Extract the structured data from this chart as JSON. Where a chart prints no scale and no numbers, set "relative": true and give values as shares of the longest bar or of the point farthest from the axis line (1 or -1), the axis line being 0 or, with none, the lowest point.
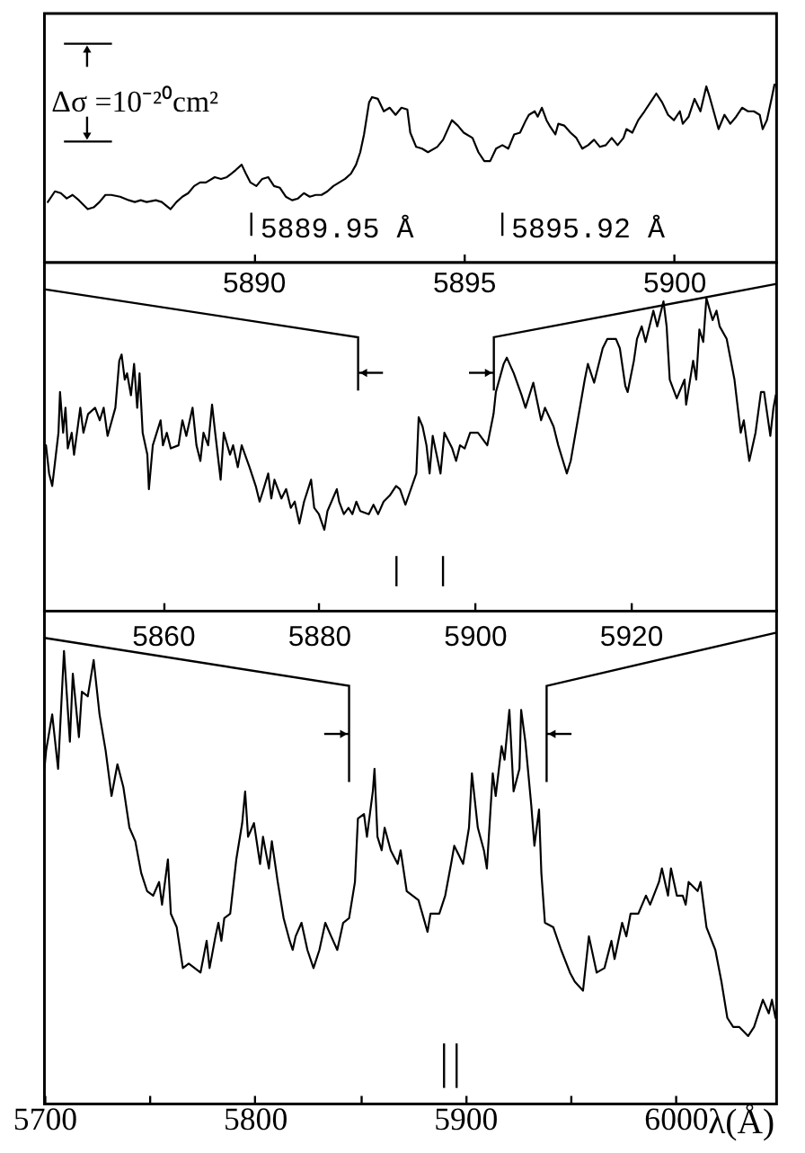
{
  "chart_data": [
    {
      "type": "line",
      "relative": true,
      "xlim": [
        5885.03,
        5902.44
      ],
      "xticks": [
        5890,
        5895,
        5900
      ],
      "annotations": [
        "Δσ =10⁻²⁰cm²"
      ],
      "ref_lines": [
        {
          "axis": "x",
          "value": 5889.95,
          "label": "5889.95 Å"
        },
        {
          "axis": "x",
          "value": 5895.92,
          "label": "5895.92 Å"
        }
      ],
      "series": [
        {
          "color": "#000000",
          "x": [
            5885.11,
            5885.28,
            5885.42,
            5885.56,
            5885.7,
            5885.85,
            5886.06,
            5886.2,
            5886.34,
            5886.48,
            5886.62,
            5886.83,
            5887.04,
            5887.18,
            5887.32,
            5887.46,
            5887.68,
            5887.82,
            5888.03,
            5888.17,
            5888.31,
            5888.45,
            5888.59,
            5888.73,
            5888.87,
            5889.08,
            5889.23,
            5889.37,
            5889.58,
            5889.72,
            5889.82,
            5889.93,
            5890.07,
            5890.21,
            5890.35,
            5890.49,
            5890.63,
            5890.77,
            5890.92,
            5891.06,
            5891.2,
            5891.34,
            5891.48,
            5891.62,
            5891.76,
            5891.9,
            5892.04,
            5892.18,
            5892.32,
            5892.44,
            5892.54,
            5892.63,
            5892.75,
            5892.82,
            5892.96,
            5893.1,
            5893.24,
            5893.38,
            5893.52,
            5893.66,
            5893.73,
            5893.87,
            5894.01,
            5894.15,
            5894.37,
            5894.51,
            5894.72,
            5894.86,
            5895.0,
            5895.21,
            5895.35,
            5895.49,
            5895.63,
            5895.77,
            5895.92,
            5896.06,
            5896.2,
            5896.34,
            5896.48,
            5896.55,
            5896.69,
            5896.76,
            5896.86,
            5896.97,
            5897.04,
            5897.18,
            5897.25,
            5897.39,
            5897.54,
            5897.68,
            5897.82,
            5897.96,
            5898.1,
            5898.24,
            5898.38,
            5898.52,
            5898.66,
            5898.8,
            5898.87,
            5899.01,
            5899.15,
            5899.3,
            5899.44,
            5899.58,
            5899.72,
            5899.86,
            5900.0,
            5900.14,
            5900.21,
            5900.35,
            5900.49,
            5900.63,
            5900.77,
            5900.85,
            5900.92,
            5901.06,
            5901.2,
            5901.34,
            5901.48,
            5901.62,
            5901.76,
            5901.9,
            5902.04,
            5902.11,
            5902.21,
            5902.32,
            5902.39
          ],
          "values": [
            0.34,
            0.4,
            0.39,
            0.36,
            0.38,
            0.35,
            0.3,
            0.31,
            0.34,
            0.38,
            0.38,
            0.37,
            0.35,
            0.34,
            0.35,
            0.34,
            0.35,
            0.34,
            0.3,
            0.34,
            0.37,
            0.39,
            0.43,
            0.45,
            0.45,
            0.48,
            0.47,
            0.48,
            0.52,
            0.55,
            0.5,
            0.45,
            0.43,
            0.47,
            0.48,
            0.43,
            0.42,
            0.37,
            0.35,
            0.36,
            0.39,
            0.37,
            0.38,
            0.38,
            0.4,
            0.43,
            0.45,
            0.47,
            0.5,
            0.55,
            0.62,
            0.72,
            0.9,
            0.93,
            0.92,
            0.85,
            0.87,
            0.83,
            0.87,
            0.86,
            0.73,
            0.65,
            0.64,
            0.62,
            0.65,
            0.69,
            0.8,
            0.77,
            0.73,
            0.7,
            0.62,
            0.57,
            0.57,
            0.64,
            0.66,
            0.64,
            0.72,
            0.73,
            0.8,
            0.83,
            0.85,
            0.82,
            0.87,
            0.8,
            0.77,
            0.72,
            0.78,
            0.77,
            0.73,
            0.7,
            0.64,
            0.66,
            0.69,
            0.65,
            0.66,
            0.7,
            0.66,
            0.7,
            0.75,
            0.73,
            0.8,
            0.85,
            0.9,
            0.95,
            0.9,
            0.83,
            0.8,
            0.85,
            0.78,
            0.82,
            0.92,
            0.85,
            0.99,
            0.93,
            0.87,
            0.75,
            0.83,
            0.78,
            0.82,
            0.87,
            0.85,
            0.85,
            0.83,
            0.75,
            0.8,
            0.92,
            1.0
          ]
        }
      ]
    },
    {
      "type": "line",
      "relative": true,
      "xlim": [
        5844.8,
        5938.7
      ],
      "xticks": [
        5860,
        5880,
        5900,
        5920
      ],
      "ref_lines": [
        {
          "axis": "x",
          "value": 5885.03
        },
        {
          "axis": "x",
          "value": 5889.95
        },
        {
          "axis": "x",
          "value": 5895.92
        },
        {
          "axis": "x",
          "value": 5902.44
        }
      ],
      "series": [
        {
          "color": "#000000",
          "x": [
            5845.0,
            5845.4,
            5845.8,
            5846.6,
            5846.8,
            5847.2,
            5847.5,
            5847.8,
            5848.3,
            5848.6,
            5849.4,
            5849.8,
            5850.4,
            5851.3,
            5851.9,
            5852.4,
            5852.9,
            5853.9,
            5854.4,
            5854.7,
            5855.1,
            5855.4,
            5855.9,
            5856.3,
            5856.7,
            5857.0,
            5857.4,
            5858.0,
            5858.2,
            5858.7,
            5859.7,
            5860.0,
            5860.5,
            5861.0,
            5862.0,
            5862.5,
            5863.0,
            5863.8,
            5864.3,
            5864.8,
            5865.2,
            5865.8,
            5866.3,
            5866.7,
            5867.4,
            5867.8,
            5868.6,
            5869.0,
            5869.6,
            5870.1,
            5871.1,
            5871.9,
            5872.4,
            5872.9,
            5873.5,
            5873.9,
            5874.3,
            5875.2,
            5875.8,
            5876.4,
            5876.9,
            5877.5,
            5878.1,
            5879.0,
            5879.4,
            5880.0,
            5880.7,
            5881.1,
            5882.3,
            5882.6,
            5883.2,
            5883.8,
            5884.3,
            5884.8,
            5885.3,
            5886.4,
            5887.0,
            5887.6,
            5888.3,
            5889.1,
            5889.9,
            5890.4,
            5891.1,
            5892.5,
            5892.8,
            5893.3,
            5893.8,
            5894.2,
            5894.6,
            5895.6,
            5896.1,
            5897.1,
            5897.6,
            5898.1,
            5898.7,
            5899.4,
            5900.4,
            5901.6,
            5902.4,
            5902.7,
            5903.7,
            5904.1,
            5905.0,
            5906.0,
            5906.5,
            5907.5,
            5908.5,
            5909.0,
            5910.1,
            5910.7,
            5911.8,
            5912.3,
            5913.2,
            5914.1,
            5914.5,
            5915.3,
            5916.4,
            5917.0,
            5918.1,
            5918.6,
            5919.3,
            5919.6,
            5920.4,
            5920.8,
            5921.4,
            5921.9,
            5922.9,
            5923.4,
            5924.2,
            5924.6,
            5925.0,
            5925.9,
            5926.9,
            5927.1,
            5928.0,
            5928.4,
            5928.8,
            5929.3,
            5929.7,
            5930.5,
            5931.0,
            5931.4,
            5932.3,
            5933.3,
            5934.1,
            5934.5,
            5935.2,
            5936.0,
            5936.7,
            5937.1,
            5937.9,
            5938.3,
            5938.6
          ],
          "values": [
            0.53,
            0.44,
            0.4,
            0.57,
            0.7,
            0.57,
            0.65,
            0.52,
            0.57,
            0.5,
            0.65,
            0.57,
            0.63,
            0.65,
            0.61,
            0.65,
            0.56,
            0.65,
            0.8,
            0.82,
            0.74,
            0.76,
            0.69,
            0.79,
            0.65,
            0.76,
            0.57,
            0.5,
            0.39,
            0.53,
            0.61,
            0.53,
            0.57,
            0.52,
            0.53,
            0.61,
            0.56,
            0.65,
            0.53,
            0.48,
            0.57,
            0.53,
            0.66,
            0.57,
            0.42,
            0.57,
            0.5,
            0.53,
            0.46,
            0.53,
            0.46,
            0.4,
            0.35,
            0.39,
            0.44,
            0.36,
            0.42,
            0.36,
            0.39,
            0.33,
            0.35,
            0.28,
            0.35,
            0.42,
            0.33,
            0.31,
            0.26,
            0.32,
            0.39,
            0.35,
            0.31,
            0.33,
            0.31,
            0.35,
            0.32,
            0.31,
            0.34,
            0.31,
            0.35,
            0.37,
            0.4,
            0.39,
            0.34,
            0.44,
            0.62,
            0.59,
            0.53,
            0.44,
            0.56,
            0.44,
            0.57,
            0.52,
            0.48,
            0.53,
            0.52,
            0.57,
            0.57,
            0.53,
            0.63,
            0.7,
            0.79,
            0.81,
            0.76,
            0.69,
            0.65,
            0.73,
            0.61,
            0.65,
            0.59,
            0.53,
            0.44,
            0.48,
            0.61,
            0.74,
            0.79,
            0.73,
            0.84,
            0.87,
            0.87,
            0.84,
            0.72,
            0.7,
            0.8,
            0.87,
            0.91,
            0.86,
            0.96,
            0.91,
            0.99,
            0.91,
            0.74,
            0.68,
            0.74,
            0.66,
            0.8,
            0.74,
            0.9,
            0.86,
            1.0,
            0.93,
            0.96,
            0.91,
            0.87,
            0.74,
            0.57,
            0.61,
            0.48,
            0.57,
            0.7,
            0.7,
            0.56,
            0.65,
            0.69
          ]
        }
      ]
    },
    {
      "type": "line",
      "relative": true,
      "xlim": [
        5700,
        6048
      ],
      "xlabel": "λ(Å)",
      "xticks": [
        5700,
        {
          "value": 5750,
          "label": null
        },
        5800,
        {
          "value": 5850,
          "label": null
        },
        5900,
        {
          "value": 5950,
          "label": null
        },
        6000
      ],
      "ref_lines": [
        {
          "axis": "x",
          "value": 5844.8
        },
        {
          "axis": "x",
          "value": 5889.95
        },
        {
          "axis": "x",
          "value": 5895.92
        },
        {
          "axis": "x",
          "value": 5938.7
        }
      ],
      "series": [
        {
          "color": "#000000",
          "x": [
            5700.0,
            5700.8,
            5703.7,
            5706.5,
            5709.3,
            5712.1,
            5713.5,
            5716.4,
            5717.8,
            5720.6,
            5723.4,
            5726.2,
            5729.1,
            5731.9,
            5734.7,
            5737.5,
            5740.4,
            5743.2,
            5746.0,
            5748.8,
            5751.7,
            5754.5,
            5755.9,
            5758.7,
            5760.1,
            5762.9,
            5765.8,
            5768.6,
            5771.4,
            5774.2,
            5777.1,
            5778.5,
            5781.3,
            5782.7,
            5784.1,
            5785.5,
            5788.3,
            5791.2,
            5794.0,
            5795.4,
            5796.8,
            5799.6,
            5802.5,
            5803.9,
            5806.7,
            5808.1,
            5810.9,
            5813.7,
            5816.6,
            5818.0,
            5819.4,
            5822.2,
            5825.0,
            5827.9,
            5830.7,
            5833.5,
            5836.3,
            5839.2,
            5842.0,
            5844.8,
            5847.6,
            5849.0,
            5851.9,
            5853.3,
            5856.1,
            5856.9,
            5858.3,
            5860.3,
            5861.7,
            5864.6,
            5867.9,
            5869.3,
            5872.2,
            5875.0,
            5877.8,
            5882.1,
            5883.5,
            5887.7,
            5890.5,
            5893.3,
            5894.8,
            5899.0,
            5901.8,
            5903.2,
            5906.0,
            5908.9,
            5910.3,
            5913.1,
            5914.5,
            5917.3,
            5918.7,
            5921.0,
            5923.0,
            5925.8,
            5926.6,
            5928.6,
            5931.4,
            5932.9,
            5935.1,
            5936.2,
            5937.9,
            5941.9,
            5945.6,
            5949.8,
            5952.1,
            5956.0,
            5958.8,
            5962.5,
            5966.2,
            5969.5,
            5971.0,
            5974.6,
            5976.6,
            5978.6,
            5982.3,
            5985.9,
            5987.9,
            5992.1,
            5993.5,
            5996.4,
            5997.8,
            6000.6,
            6003.4,
            6004.8,
            6006.2,
            6010.5,
            6011.9,
            6014.7,
            6018.9,
            6021.8,
            6024.6,
            6027.4,
            6030.2,
            6034.5,
            6037.3,
            6041.5,
            6044.3,
            6045.8,
            6047.5
          ],
          "values": [
            0.74,
            0.78,
            0.86,
            0.74,
            1.0,
            0.8,
            0.95,
            0.81,
            0.91,
            0.9,
            0.98,
            0.86,
            0.78,
            0.68,
            0.75,
            0.7,
            0.61,
            0.58,
            0.51,
            0.47,
            0.46,
            0.49,
            0.44,
            0.54,
            0.42,
            0.39,
            0.3,
            0.31,
            0.3,
            0.29,
            0.36,
            0.3,
            0.37,
            0.4,
            0.36,
            0.41,
            0.42,
            0.54,
            0.62,
            0.69,
            0.59,
            0.62,
            0.53,
            0.59,
            0.52,
            0.58,
            0.49,
            0.41,
            0.36,
            0.34,
            0.37,
            0.4,
            0.34,
            0.3,
            0.34,
            0.4,
            0.37,
            0.34,
            0.4,
            0.41,
            0.49,
            0.63,
            0.64,
            0.59,
            0.69,
            0.74,
            0.59,
            0.56,
            0.61,
            0.56,
            0.53,
            0.56,
            0.47,
            0.46,
            0.45,
            0.38,
            0.42,
            0.42,
            0.46,
            0.53,
            0.57,
            0.53,
            0.61,
            0.73,
            0.61,
            0.56,
            0.52,
            0.73,
            0.68,
            0.79,
            0.76,
            0.87,
            0.69,
            0.74,
            0.87,
            0.8,
            0.66,
            0.57,
            0.65,
            0.51,
            0.4,
            0.39,
            0.34,
            0.29,
            0.27,
            0.25,
            0.37,
            0.29,
            0.3,
            0.36,
            0.32,
            0.4,
            0.37,
            0.42,
            0.42,
            0.46,
            0.44,
            0.49,
            0.52,
            0.46,
            0.52,
            0.46,
            0.46,
            0.44,
            0.49,
            0.47,
            0.49,
            0.39,
            0.34,
            0.27,
            0.19,
            0.17,
            0.17,
            0.15,
            0.17,
            0.23,
            0.2,
            0.23,
            0.19
          ]
        }
      ]
    }
  ]
}
